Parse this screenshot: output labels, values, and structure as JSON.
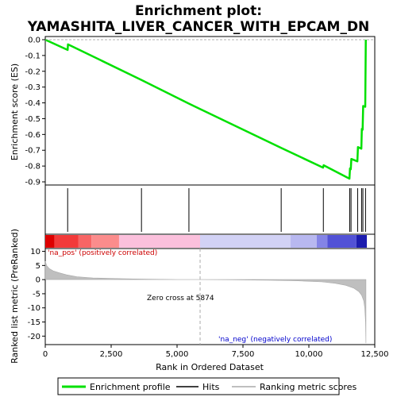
{
  "chart_data": {
    "type": "line",
    "title_line1": "Enrichment plot:",
    "title_line2": "YAMASHITA_LIVER_CANCER_WITH_EPCAM_DN",
    "xlabel": "Rank in Ordered Dataset",
    "es_ylabel": "Enrichment score (ES)",
    "metric_ylabel": "Ranked list metric (PreRanked)",
    "xlim": [
      0,
      12500
    ],
    "x_ticks": [
      0,
      2500,
      5000,
      7500,
      10000,
      12500
    ],
    "x_tick_labels": [
      "0",
      "2,500",
      "5,000",
      "7,500",
      "10,000",
      "12,500"
    ],
    "es_ylim": [
      -0.92,
      0.02
    ],
    "es_ticks": [
      0.0,
      -0.1,
      -0.2,
      -0.3,
      -0.4,
      -0.5,
      -0.6,
      -0.7,
      -0.8,
      -0.9
    ],
    "es_tick_labels": [
      "0.0",
      "-0.1",
      "-0.2",
      "-0.3",
      "-0.4",
      "-0.5",
      "-0.6",
      "-0.7",
      "-0.8",
      "-0.9"
    ],
    "metric_ylim": [
      -23,
      11
    ],
    "metric_ticks": [
      10,
      5,
      0,
      -5,
      -10,
      -15,
      -20
    ],
    "metric_tick_labels": [
      "10",
      "5",
      "0",
      "-5",
      "-10",
      "-15",
      "-20"
    ],
    "hits": [
      850,
      3650,
      5450,
      8950,
      10550,
      11550,
      11600,
      11850,
      12000,
      12050,
      12150
    ],
    "es_curve": {
      "x": [
        0,
        850,
        860,
        3650,
        5450,
        8950,
        10540,
        10560,
        11540,
        11560,
        11590,
        11610,
        11840,
        11860,
        11990,
        12010,
        12040,
        12060,
        12140,
        12160
      ],
      "y": [
        0.0,
        -0.065,
        -0.03,
        -0.255,
        -0.405,
        -0.685,
        -0.81,
        -0.795,
        -0.88,
        -0.815,
        -0.82,
        -0.755,
        -0.77,
        -0.68,
        -0.69,
        -0.565,
        -0.57,
        -0.42,
        -0.425,
        0.0
      ]
    },
    "metric_curve": {
      "x": [
        0,
        50,
        150,
        300,
        500,
        800,
        1200,
        1800,
        2500,
        3500,
        5000,
        5874,
        7000,
        8500,
        9500,
        10500,
        11000,
        11400,
        11700,
        11900,
        12000,
        12080,
        12120,
        12150,
        12165
      ],
      "y": [
        6.5,
        5.0,
        3.9,
        3.1,
        2.5,
        1.7,
        1.0,
        0.6,
        0.4,
        0.2,
        0.05,
        0.0,
        -0.05,
        -0.2,
        -0.4,
        -0.8,
        -1.3,
        -2.0,
        -3.0,
        -4.3,
        -5.5,
        -7.5,
        -10.0,
        -15.0,
        -22.5
      ]
    },
    "heatmap_segments": [
      {
        "x0": 0,
        "x1": 350,
        "color": "#dd0000"
      },
      {
        "x0": 350,
        "x1": 1250,
        "color": "#f23a3a"
      },
      {
        "x0": 1250,
        "x1": 1750,
        "color": "#f76565"
      },
      {
        "x0": 1750,
        "x1": 2800,
        "color": "#fb8c8c"
      },
      {
        "x0": 2800,
        "x1": 5874,
        "color": "#fbc0dc"
      },
      {
        "x0": 5874,
        "x1": 9300,
        "color": "#d2d2f5"
      },
      {
        "x0": 9300,
        "x1": 10300,
        "color": "#b8b8f0"
      },
      {
        "x0": 10300,
        "x1": 10700,
        "color": "#8484e6"
      },
      {
        "x0": 10700,
        "x1": 11800,
        "color": "#5252d6"
      },
      {
        "x0": 11800,
        "x1": 12200,
        "color": "#1c1cae"
      }
    ],
    "zero_cross_x": 5874,
    "zero_cross_label": "Zero cross at 5874",
    "pos_label": "'na_pos' (positively correlated)",
    "neg_label": "'na_neg' (negatively correlated)",
    "legend": [
      "Enrichment profile",
      "Hits",
      "Ranking metric scores"
    ],
    "colors": {
      "es_line": "#00e000",
      "hits": "#000000",
      "metric_fill": "#bfbfbf",
      "pos_label": "#cc0000",
      "neg_label": "#0000cc",
      "legend_metric": "#bfbfbf"
    }
  }
}
